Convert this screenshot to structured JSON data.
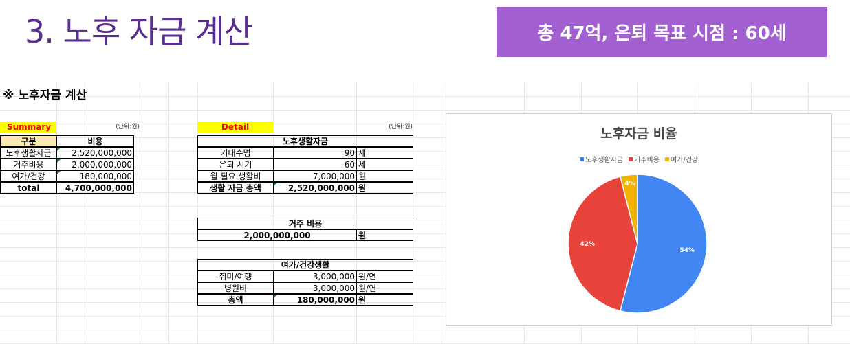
{
  "slide": {
    "title": "3. 노후 자금 계산",
    "banner": "총 47억, 은퇴 목표 시점  : 60세"
  },
  "sheet": {
    "title": "※ 노후자금 계산",
    "summary": {
      "label": "Summary",
      "unit": "(단위:원)",
      "headers": [
        "구분",
        "비용"
      ],
      "rows": [
        {
          "name": "노후생활자금",
          "value": "2,520,000,000"
        },
        {
          "name": "거주비용",
          "value": "2,000,000,000"
        },
        {
          "name": "여가/건강",
          "value": "180,000,000"
        }
      ],
      "total_label": "total",
      "total_value": "4,700,000,000"
    },
    "detail": {
      "label": "Detail",
      "unit": "(단위:원)",
      "living": {
        "title": "노후생활자금",
        "rows": [
          {
            "name": "기대수명",
            "value": "90",
            "unit": "세"
          },
          {
            "name": "은퇴 시기",
            "value": "60",
            "unit": "세"
          },
          {
            "name": "월 필요 생활비",
            "value": "7,000,000",
            "unit": "원"
          }
        ],
        "total_name": "생활 자금 총액",
        "total_value": "2,520,000,000",
        "total_unit": "원"
      },
      "housing": {
        "title": "거주 비용",
        "value": "2,000,000,000",
        "unit": "원"
      },
      "leisure": {
        "title": "여가/건강생활",
        "rows": [
          {
            "name": "취미/여행",
            "value": "3,000,000",
            "unit": "원/연"
          },
          {
            "name": "병원비",
            "value": "3,000,000",
            "unit": "원/연"
          }
        ],
        "total_name": "총액",
        "total_value": "180,000,000",
        "total_unit": "원"
      }
    }
  },
  "chart_data": {
    "type": "pie",
    "title": "노후자금 비율",
    "categories": [
      "노후생활자금",
      "거주비용",
      "여가/건강"
    ],
    "values": [
      54,
      42,
      4
    ],
    "labels": [
      "54%",
      "42%",
      "4%"
    ],
    "colors": [
      "#4286f4",
      "#e8433a",
      "#f2b300"
    ],
    "legend": "top"
  }
}
